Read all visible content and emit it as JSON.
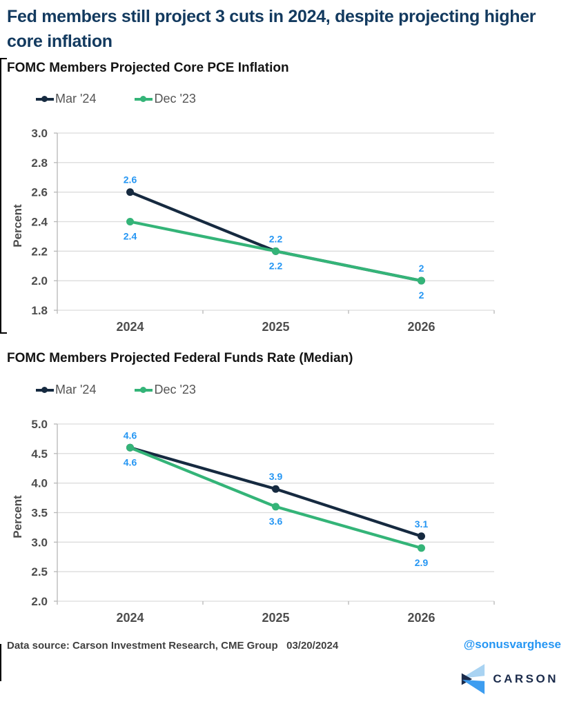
{
  "header": {
    "title": "Fed members still project 3 cuts in 2024, despite projecting higher core inflation"
  },
  "colors": {
    "navy": "#162a40",
    "green": "#34b478",
    "data_label_blue": "#2596f3",
    "title_navy": "#133a5f",
    "tick_gray": "#4d4d4d",
    "grid_gray": "#dcdcdc"
  },
  "chart_data": [
    {
      "type": "line",
      "title": "FOMC Members Projected Core PCE Inflation",
      "ylabel": "Percent",
      "categories": [
        "2024",
        "2025",
        "2026"
      ],
      "ylim": [
        1.8,
        3.0
      ],
      "yticks": [
        "3.0",
        "2.8",
        "2.6",
        "2.4",
        "2.2",
        "2.0",
        "1.8"
      ],
      "grid": true,
      "legend_position": "top-left",
      "data_label_color": "#2596f3",
      "series": [
        {
          "name": "Mar '24",
          "color": "#162a40",
          "values": [
            2.6,
            2.2,
            2.0
          ],
          "labels": [
            "2.6",
            "2.2",
            "2"
          ],
          "label_position": "above"
        },
        {
          "name": "Dec '23",
          "color": "#34b478",
          "values": [
            2.4,
            2.2,
            2.0
          ],
          "labels": [
            "2.4",
            "2.2",
            "2"
          ],
          "label_position": "below"
        }
      ]
    },
    {
      "type": "line",
      "title": "FOMC Members Projected Federal Funds Rate (Median)",
      "ylabel": "Percent",
      "categories": [
        "2024",
        "2025",
        "2026"
      ],
      "ylim": [
        2.0,
        5.0
      ],
      "yticks": [
        "5.0",
        "4.5",
        "4.0",
        "3.5",
        "3.0",
        "2.5",
        "2.0"
      ],
      "grid": true,
      "legend_position": "top-left",
      "data_label_color": "#2596f3",
      "series": [
        {
          "name": "Mar '24",
          "color": "#162a40",
          "values": [
            4.6,
            3.9,
            3.1
          ],
          "labels": [
            "4.6",
            "3.9",
            "3.1"
          ],
          "label_position": "above"
        },
        {
          "name": "Dec '23",
          "color": "#34b478",
          "values": [
            4.6,
            3.6,
            2.9
          ],
          "labels": [
            "4.6",
            "3.6",
            "2.9"
          ],
          "label_position": "below"
        }
      ]
    }
  ],
  "footer": {
    "source": "Data source: Carson Investment Research, CME Group   03/20/2024",
    "handle": "@sonusvarghese",
    "brand": "CARSON"
  }
}
